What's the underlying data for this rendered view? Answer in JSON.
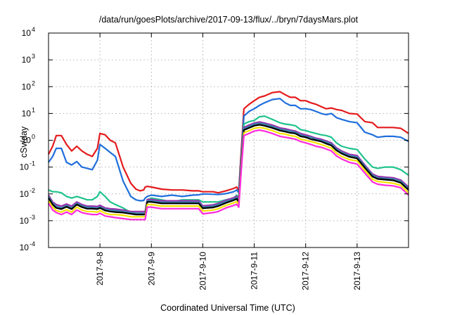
{
  "chart_data": {
    "type": "line",
    "title": "/data/run/goesPlots/archive/2017-09-13/flux/../bryn/7daysMars.plot",
    "xlabel": "Coordinated Universal Time (UTC)",
    "ylabel": "cSv/day",
    "yscale": "log",
    "ylim": [
      0.0001,
      10000
    ],
    "xlim": [
      0.0,
      7.0
    ],
    "grid": true,
    "y_ticks": [
      {
        "value": 0.0001,
        "base": "10",
        "exp": "-4"
      },
      {
        "value": 0.001,
        "base": "10",
        "exp": "-3"
      },
      {
        "value": 0.01,
        "base": "10",
        "exp": "-2"
      },
      {
        "value": 0.1,
        "base": "10",
        "exp": "-1"
      },
      {
        "value": 1,
        "base": "10",
        "exp": "0"
      },
      {
        "value": 10,
        "base": "10",
        "exp": "1"
      },
      {
        "value": 100,
        "base": "10",
        "exp": "2"
      },
      {
        "value": 1000,
        "base": "10",
        "exp": "3"
      },
      {
        "value": 10000,
        "base": "10",
        "exp": "4"
      }
    ],
    "x_ticks": [
      {
        "value": 1.0,
        "label": "2017-9-8"
      },
      {
        "value": 2.0,
        "label": "2017-9-9"
      },
      {
        "value": 3.0,
        "label": "2017-9-10"
      },
      {
        "value": 4.0,
        "label": "2017-9-11"
      },
      {
        "value": 5.0,
        "label": "2017-9-12"
      },
      {
        "value": 6.0,
        "label": "2017-9-13"
      }
    ],
    "x": [
      0.0,
      0.08,
      0.15,
      0.25,
      0.35,
      0.45,
      0.55,
      0.65,
      0.75,
      0.85,
      0.95,
      1.0,
      1.1,
      1.2,
      1.3,
      1.45,
      1.6,
      1.7,
      1.78,
      1.85,
      1.88,
      1.92,
      2.0,
      2.2,
      2.4,
      2.6,
      2.8,
      2.92,
      3.0,
      3.2,
      3.3,
      3.45,
      3.6,
      3.66,
      3.7,
      3.75,
      3.8,
      3.9,
      4.0,
      4.1,
      4.2,
      4.35,
      4.5,
      4.6,
      4.7,
      4.8,
      4.9,
      5.0,
      5.1,
      5.2,
      5.3,
      5.4,
      5.5,
      5.6,
      5.7,
      5.85,
      6.0,
      6.15,
      6.3,
      6.4,
      6.55,
      6.7,
      6.85,
      7.0
    ],
    "series": [
      {
        "color": "#e41a1c",
        "values": [
          0.3,
          0.6,
          1.5,
          1.5,
          0.7,
          0.4,
          0.6,
          0.4,
          0.3,
          0.25,
          0.5,
          1.8,
          1.6,
          1.0,
          0.8,
          0.1,
          0.025,
          0.015,
          0.013,
          0.014,
          0.018,
          0.019,
          0.018,
          0.015,
          0.014,
          0.014,
          0.013,
          0.013,
          0.012,
          0.012,
          0.011,
          0.013,
          0.016,
          0.018,
          0.013,
          0.5,
          15,
          22,
          30,
          40,
          45,
          60,
          65,
          50,
          40,
          40,
          30,
          30,
          25,
          22,
          18,
          15,
          16,
          14,
          13,
          10,
          9.5,
          5.0,
          4.5,
          3.0,
          3.0,
          3.0,
          2.8,
          1.8
        ]
      },
      {
        "color": "#1f6fdc",
        "values": [
          0.15,
          0.25,
          0.5,
          0.5,
          0.15,
          0.12,
          0.16,
          0.1,
          0.09,
          0.08,
          0.18,
          0.7,
          0.5,
          0.35,
          0.25,
          0.03,
          0.008,
          0.006,
          0.0055,
          0.0057,
          0.007,
          0.008,
          0.009,
          0.008,
          0.009,
          0.008,
          0.009,
          0.0092,
          0.01,
          0.0097,
          0.0095,
          0.0102,
          0.012,
          0.014,
          0.011,
          0.3,
          8.0,
          12,
          15,
          20,
          25,
          33,
          36,
          25,
          20,
          20,
          15,
          15,
          14,
          12,
          10,
          9.0,
          10,
          7.0,
          6.0,
          5.0,
          4.5,
          2.0,
          1.6,
          1.3,
          1.4,
          1.4,
          1.3,
          0.9
        ]
      },
      {
        "color": "#1fc28e",
        "values": [
          0.014,
          0.012,
          0.012,
          0.011,
          0.008,
          0.007,
          0.008,
          0.007,
          0.006,
          0.006,
          0.008,
          0.012,
          0.008,
          0.005,
          0.004,
          0.003,
          0.002,
          0.0018,
          0.0017,
          0.0017,
          0.0018,
          0.006,
          0.007,
          0.006,
          0.005,
          0.006,
          0.006,
          0.006,
          0.005,
          0.005,
          0.005,
          0.006,
          0.007,
          0.009,
          0.007,
          0.2,
          4.0,
          5.0,
          5.5,
          7.5,
          8.0,
          6.0,
          4.5,
          4.0,
          3.8,
          3.5,
          2.5,
          2.3,
          2.0,
          1.8,
          1.6,
          1.5,
          1.3,
          0.8,
          0.6,
          0.5,
          0.45,
          0.2,
          0.1,
          0.09,
          0.1,
          0.1,
          0.08,
          0.05
        ]
      },
      {
        "color": "#9b2fae",
        "values": [
          0.009,
          0.005,
          0.004,
          0.0035,
          0.0042,
          0.0035,
          0.005,
          0.004,
          0.0035,
          0.0035,
          0.0034,
          0.0038,
          0.003,
          0.0028,
          0.0027,
          0.0025,
          0.0022,
          0.0022,
          0.0022,
          0.0022,
          0.0022,
          0.0062,
          0.0062,
          0.0055,
          0.0055,
          0.0055,
          0.0055,
          0.0055,
          0.0036,
          0.0039,
          0.0044,
          0.0058,
          0.0072,
          0.0081,
          0.0063,
          0.18,
          3.0,
          3.7,
          4.4,
          4.8,
          4.4,
          3.7,
          2.9,
          2.7,
          2.4,
          2.2,
          1.8,
          1.6,
          1.4,
          1.2,
          1.1,
          0.94,
          0.8,
          0.52,
          0.4,
          0.3,
          0.27,
          0.12,
          0.055,
          0.045,
          0.042,
          0.04,
          0.033,
          0.018
        ]
      },
      {
        "color": "#3a7faa",
        "values": [
          0.008,
          0.0045,
          0.0035,
          0.003,
          0.0037,
          0.003,
          0.0045,
          0.0036,
          0.0032,
          0.0031,
          0.003,
          0.0033,
          0.0027,
          0.0025,
          0.0024,
          0.0022,
          0.002,
          0.0019,
          0.0019,
          0.0019,
          0.0019,
          0.0055,
          0.0055,
          0.0049,
          0.0049,
          0.0049,
          0.0049,
          0.0049,
          0.0032,
          0.0035,
          0.004,
          0.0052,
          0.0065,
          0.0073,
          0.0057,
          0.16,
          2.7,
          3.3,
          4.0,
          4.3,
          4.0,
          3.3,
          2.6,
          2.4,
          2.2,
          2.0,
          1.6,
          1.4,
          1.3,
          1.1,
          1.0,
          0.85,
          0.72,
          0.47,
          0.36,
          0.27,
          0.24,
          0.11,
          0.05,
          0.04,
          0.038,
          0.036,
          0.03,
          0.016
        ]
      },
      {
        "color": "#000000",
        "values": [
          0.007,
          0.004,
          0.003,
          0.0027,
          0.0033,
          0.0027,
          0.004,
          0.0032,
          0.0028,
          0.0028,
          0.0027,
          0.003,
          0.0024,
          0.0022,
          0.0021,
          0.002,
          0.0018,
          0.0017,
          0.0017,
          0.0017,
          0.0017,
          0.005,
          0.005,
          0.0044,
          0.0044,
          0.0044,
          0.0044,
          0.0044,
          0.0029,
          0.0031,
          0.0035,
          0.0046,
          0.0058,
          0.0065,
          0.005,
          0.14,
          2.4,
          2.9,
          3.5,
          3.8,
          3.5,
          2.9,
          2.3,
          2.1,
          1.9,
          1.8,
          1.4,
          1.3,
          1.1,
          1.0,
          0.9,
          0.75,
          0.64,
          0.42,
          0.32,
          0.24,
          0.21,
          0.095,
          0.044,
          0.036,
          0.034,
          0.032,
          0.026,
          0.014
        ]
      },
      {
        "color": "#f2e200",
        "values": [
          0.0055,
          0.0032,
          0.0024,
          0.0021,
          0.0026,
          0.0021,
          0.0032,
          0.0025,
          0.0022,
          0.0022,
          0.0021,
          0.0024,
          0.0019,
          0.0017,
          0.0017,
          0.0016,
          0.0014,
          0.0014,
          0.0014,
          0.0014,
          0.0014,
          0.004,
          0.004,
          0.0035,
          0.0035,
          0.0035,
          0.0035,
          0.0035,
          0.0023,
          0.0025,
          0.0028,
          0.0037,
          0.0046,
          0.0052,
          0.004,
          0.11,
          1.9,
          2.3,
          2.8,
          3.0,
          2.8,
          2.3,
          1.8,
          1.7,
          1.5,
          1.4,
          1.1,
          1.0,
          0.9,
          0.8,
          0.7,
          0.6,
          0.51,
          0.33,
          0.25,
          0.19,
          0.17,
          0.076,
          0.035,
          0.029,
          0.027,
          0.025,
          0.021,
          0.011
        ]
      },
      {
        "color": "#ff2adf",
        "values": [
          0.0045,
          0.0025,
          0.002,
          0.0017,
          0.0021,
          0.0017,
          0.0025,
          0.002,
          0.0018,
          0.0017,
          0.0017,
          0.0019,
          0.0015,
          0.0014,
          0.0013,
          0.0012,
          0.0011,
          0.0011,
          0.0011,
          0.0011,
          0.0011,
          0.0032,
          0.0032,
          0.0028,
          0.0028,
          0.0028,
          0.0028,
          0.0028,
          0.0018,
          0.002,
          0.0022,
          0.003,
          0.0037,
          0.0041,
          0.0032,
          0.09,
          1.5,
          1.8,
          2.2,
          2.4,
          2.2,
          1.8,
          1.4,
          1.3,
          1.2,
          1.1,
          0.9,
          0.8,
          0.7,
          0.6,
          0.55,
          0.47,
          0.4,
          0.26,
          0.2,
          0.15,
          0.13,
          0.06,
          0.028,
          0.023,
          0.021,
          0.02,
          0.017,
          0.009
        ]
      }
    ]
  }
}
